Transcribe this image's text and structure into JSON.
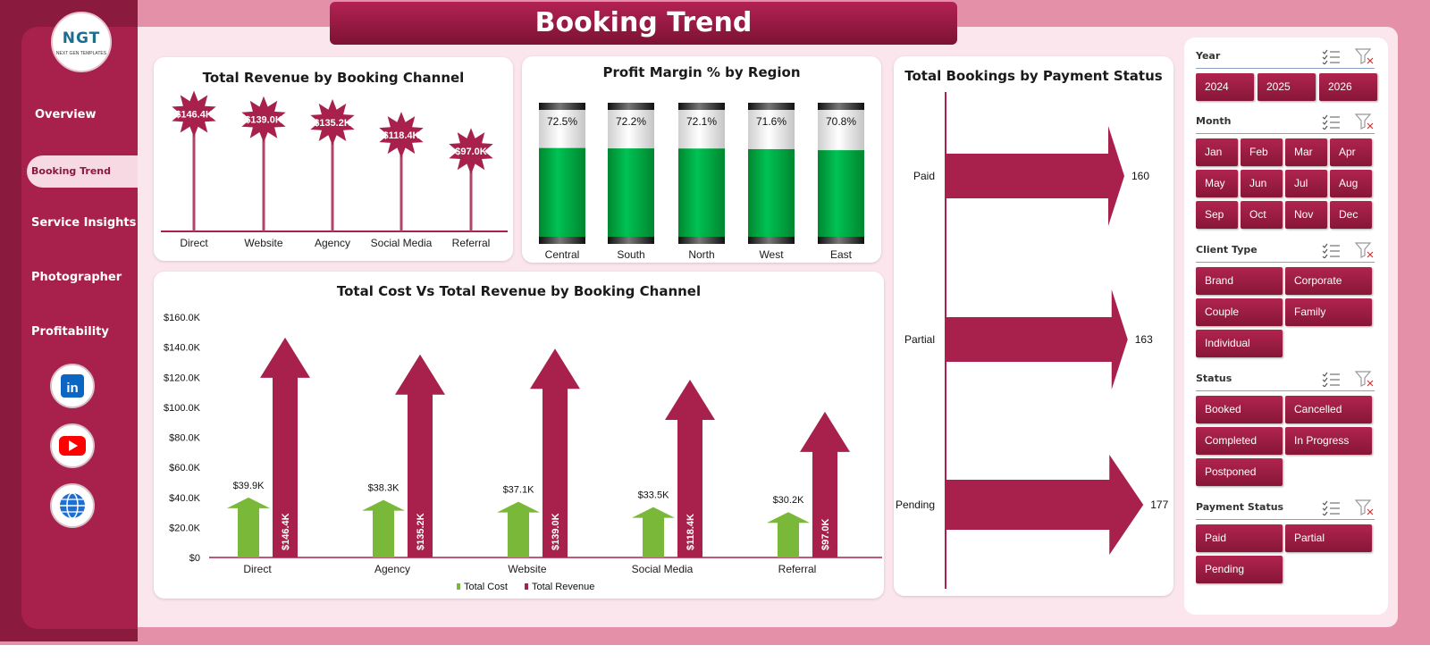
{
  "title": "Booking Trend",
  "logo": {
    "text": "NGT",
    "sub": "NEXT GEN TEMPLATES"
  },
  "nav": {
    "items": [
      {
        "label": "Overview",
        "active": false
      },
      {
        "label": "Booking Trend",
        "active": true
      },
      {
        "label": "Service Insights",
        "active": false
      },
      {
        "label": "Photographer",
        "active": false
      },
      {
        "label": "Profitability",
        "active": false
      }
    ],
    "social": [
      "linkedin-icon",
      "youtube-icon",
      "globe-icon"
    ]
  },
  "colors": {
    "brand": "#a8214d",
    "accent_green": "#00b050",
    "arrow_green": "#7ab83a",
    "dark": "#8a1a3e"
  },
  "slicers": {
    "year": {
      "label": "Year",
      "options": [
        "2024",
        "2025",
        "2026"
      ]
    },
    "month": {
      "label": "Month",
      "options": [
        "Jan",
        "Feb",
        "Mar",
        "Apr",
        "May",
        "Jun",
        "Jul",
        "Aug",
        "Sep",
        "Oct",
        "Nov",
        "Dec"
      ]
    },
    "client_type": {
      "label": "Client Type",
      "options": [
        "Brand",
        "Corporate",
        "Couple",
        "Family",
        "Individual"
      ]
    },
    "status": {
      "label": "Status",
      "options": [
        "Booked",
        "Cancelled",
        "Completed",
        "In Progress",
        "Postponed"
      ]
    },
    "payment_status": {
      "label": "Payment Status",
      "options": [
        "Paid",
        "Partial",
        "Pending"
      ]
    }
  },
  "chart_data": [
    {
      "id": "revenue_by_channel",
      "type": "bar",
      "title": "Total Revenue  by Booking Channel",
      "categories": [
        "Direct",
        "Website",
        "Agency",
        "Social Media",
        "Referral"
      ],
      "values": [
        146.4,
        139.0,
        135.2,
        118.4,
        97.0
      ],
      "labels": [
        "$146.4K",
        "$139.0K",
        "$135.2K",
        "$118.4K",
        "$97.0K"
      ],
      "unit": "$K"
    },
    {
      "id": "profit_margin_by_region",
      "type": "bar",
      "title": "Profit Margin % by Region",
      "categories": [
        "Central",
        "South",
        "North",
        "West",
        "East"
      ],
      "values": [
        72.5,
        72.2,
        72.1,
        71.6,
        70.8
      ],
      "labels": [
        "72.5%",
        "72.2%",
        "72.1%",
        "71.6%",
        "70.8%"
      ],
      "ylim": [
        0,
        100
      ]
    },
    {
      "id": "cost_vs_revenue",
      "type": "bar",
      "title": "Total Cost Vs Total Revenue  by Booking Channel",
      "categories": [
        "Direct",
        "Agency",
        "Website",
        "Social Media",
        "Referral"
      ],
      "yticks": [
        "$0",
        "$20.0K",
        "$40.0K",
        "$60.0K",
        "$80.0K",
        "$100.0K",
        "$120.0K",
        "$140.0K",
        "$160.0K"
      ],
      "ylim": [
        0,
        160
      ],
      "series": [
        {
          "name": "Total Cost",
          "values": [
            39.9,
            38.3,
            37.1,
            33.5,
            30.2
          ],
          "labels": [
            "$39.9K",
            "$38.3K",
            "$37.1K",
            "$33.5K",
            "$30.2K"
          ],
          "color": "#7ab83a"
        },
        {
          "name": "Total Revenue",
          "values": [
            146.4,
            135.2,
            139.0,
            118.4,
            97.0
          ],
          "labels": [
            "$146.4K",
            "$135.2K",
            "$139.0K",
            "$118.4K",
            "$97.0K"
          ],
          "color": "#a8214d"
        }
      ],
      "legend": "bottom"
    },
    {
      "id": "bookings_by_payment",
      "type": "bar",
      "orientation": "horizontal",
      "title": "Total Bookings by Payment Status",
      "categories": [
        "Paid",
        "Partial",
        "Pending"
      ],
      "values": [
        160,
        163,
        177
      ],
      "labels": [
        "160",
        "163",
        "177"
      ]
    }
  ]
}
